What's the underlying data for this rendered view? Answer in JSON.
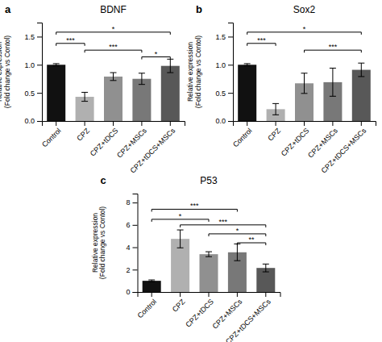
{
  "chart_data": [
    {
      "type": "bar",
      "label": "a",
      "title": "BDNF",
      "categories": [
        "Control",
        "CPZ",
        "CPZ+tDCS",
        "CPZ+MSCs",
        "CPZ+tDCS+MSCs"
      ],
      "values": [
        1.0,
        0.43,
        0.79,
        0.75,
        0.98
      ],
      "errors": [
        0.02,
        0.08,
        0.07,
        0.1,
        0.12
      ],
      "colors": [
        "#111111",
        "#b0b0b0",
        "#909090",
        "#787878",
        "#585858"
      ],
      "ylim": [
        0,
        1.75
      ],
      "yticks": [
        {
          "value": 0,
          "label": "0.0"
        },
        0.5,
        {
          "value": 1,
          "label": "1.0"
        },
        1.5
      ],
      "ylabel": "Relative expression\n(Fold change vs Contol)",
      "grid": false,
      "significance": [
        {
          "x1": 0,
          "x2": 1,
          "y": 1.38,
          "label": "***"
        },
        {
          "x1": 0,
          "x2": 4,
          "y": 1.58,
          "label": "*"
        },
        {
          "x1": 1,
          "x2": 3,
          "y": 1.26,
          "label": "***"
        },
        {
          "x1": 3,
          "x2": 4,
          "y": 1.14,
          "label": "*"
        }
      ]
    },
    {
      "type": "bar",
      "label": "b",
      "title": "Sox2",
      "categories": [
        "Control",
        "CPZ",
        "CPZ+tDCS",
        "CPZ+MSCs",
        "CPZ+tDCS+MSCs"
      ],
      "values": [
        1.0,
        0.21,
        0.67,
        0.69,
        0.91
      ],
      "errors": [
        0.02,
        0.1,
        0.18,
        0.25,
        0.12
      ],
      "colors": [
        "#111111",
        "#b0b0b0",
        "#909090",
        "#787878",
        "#585858"
      ],
      "ylim": [
        0,
        1.75
      ],
      "yticks": [
        {
          "value": 0,
          "label": "0.0"
        },
        0.5,
        {
          "value": 1,
          "label": "1.0"
        },
        1.5
      ],
      "ylabel": "Relative expression\n(Fold change vs Contol)",
      "grid": false,
      "significance": [
        {
          "x1": 0,
          "x2": 1,
          "y": 1.38,
          "label": "***"
        },
        {
          "x1": 0,
          "x2": 4,
          "y": 1.58,
          "label": "*"
        },
        {
          "x1": 2,
          "x2": 4,
          "y": 1.26,
          "label": "***"
        }
      ]
    },
    {
      "type": "bar",
      "label": "c",
      "title": "P53",
      "categories": [
        "Control",
        "CPZ",
        "CPZ+tDCS",
        "CPZ+MSCs",
        "CPZ+tDCS+MSCs"
      ],
      "values": [
        1.0,
        4.75,
        3.38,
        3.55,
        2.15
      ],
      "errors": [
        0.08,
        0.8,
        0.22,
        0.75,
        0.35
      ],
      "colors": [
        "#111111",
        "#b0b0b0",
        "#909090",
        "#787878",
        "#585858"
      ],
      "ylim": [
        0,
        8.8
      ],
      "yticks": [
        0,
        2,
        4,
        6,
        8
      ],
      "ylabel": "Relative expression\n(Fold change vs Contol)",
      "grid": false,
      "significance": [
        {
          "x1": 0,
          "x2": 2,
          "y": 6.5,
          "label": "*"
        },
        {
          "x1": 0,
          "x2": 3,
          "y": 7.4,
          "label": "***"
        },
        {
          "x1": 1,
          "x2": 4,
          "y": 6.0,
          "label": "***"
        },
        {
          "x1": 2,
          "x2": 4,
          "y": 5.2,
          "label": "*"
        },
        {
          "x1": 3,
          "x2": 4,
          "y": 4.4,
          "label": "**"
        }
      ]
    }
  ]
}
